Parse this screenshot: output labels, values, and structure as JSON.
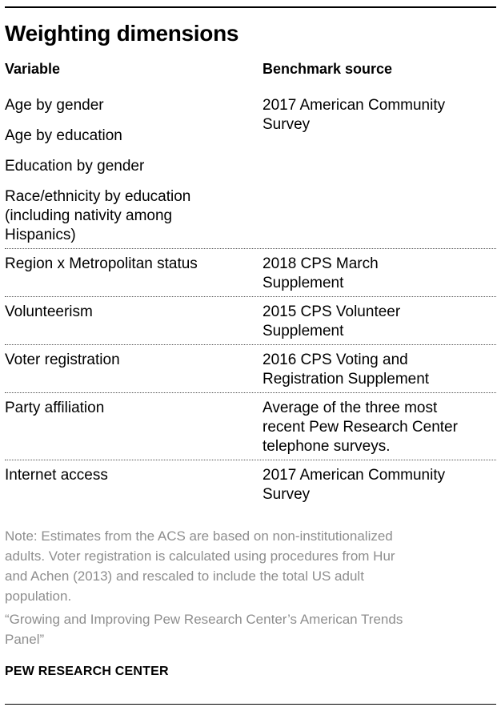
{
  "title": "Weighting dimensions",
  "table": {
    "headers": {
      "variable": "Variable",
      "benchmark": "Benchmark source"
    },
    "rows": [
      {
        "variables": [
          "Age by gender",
          "Age by education",
          "Education by gender",
          "Race/ethnicity by education\n(including nativity among\nHispanics)"
        ],
        "benchmark": "2017 American Community\nSurvey"
      },
      {
        "variables": [
          "Region x Metropolitan status"
        ],
        "benchmark": "2018 CPS March\nSupplement"
      },
      {
        "variables": [
          "Volunteerism"
        ],
        "benchmark": "2015 CPS Volunteer\nSupplement"
      },
      {
        "variables": [
          "Voter registration"
        ],
        "benchmark": "2016 CPS Voting and\nRegistration Supplement"
      },
      {
        "variables": [
          "Party affiliation"
        ],
        "benchmark": "Average of the three most\nrecent Pew Research Center\ntelephone surveys."
      },
      {
        "variables": [
          "Internet access"
        ],
        "benchmark": "2017 American Community\nSurvey"
      }
    ]
  },
  "note": "Note: Estimates from the ACS are based on non-institutionalized\nadults. Voter registration is calculated using procedures from Hur\nand Achen (2013) and rescaled to include the total US adult\npopulation.",
  "source_quote": "“Growing and Improving Pew Research Center’s American Trends\nPanel”",
  "footer": "PEW RESEARCH CENTER",
  "colors": {
    "text": "#000000",
    "note_gray": "#8e8e8e",
    "rule": "#000000",
    "dotted": "#555555"
  },
  "chart_data": {
    "type": "table",
    "title": "Weighting dimensions",
    "columns": [
      "Variable",
      "Benchmark source"
    ],
    "rows": [
      {
        "variable": "Age by gender",
        "benchmark": "2017 American Community Survey"
      },
      {
        "variable": "Age by education",
        "benchmark": "2017 American Community Survey"
      },
      {
        "variable": "Education by gender",
        "benchmark": "2017 American Community Survey"
      },
      {
        "variable": "Race/ethnicity by education (including nativity among Hispanics)",
        "benchmark": "2017 American Community Survey"
      },
      {
        "variable": "Region x Metropolitan status",
        "benchmark": "2018 CPS March Supplement"
      },
      {
        "variable": "Volunteerism",
        "benchmark": "2015 CPS Volunteer Supplement"
      },
      {
        "variable": "Voter registration",
        "benchmark": "2016 CPS Voting and Registration Supplement"
      },
      {
        "variable": "Party affiliation",
        "benchmark": "Average of the three most recent Pew Research Center telephone surveys."
      },
      {
        "variable": "Internet access",
        "benchmark": "2017 American Community Survey"
      }
    ],
    "layout": {
      "grid": "dotted-row-separators",
      "header_divider": false
    }
  }
}
